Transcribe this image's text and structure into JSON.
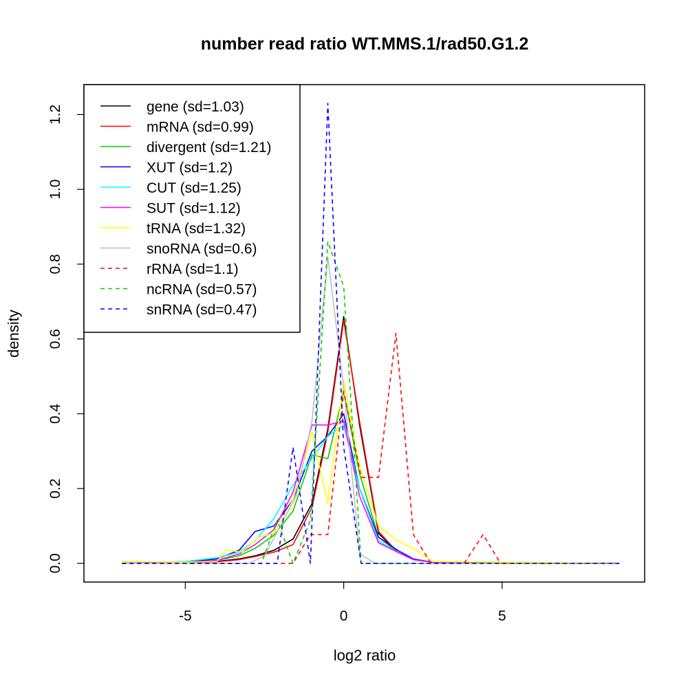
{
  "chart_data": {
    "type": "line",
    "title": "number read ratio WT.MMS.1/rad50.G1.2",
    "xlabel": "log2 ratio",
    "ylabel": "density",
    "xlim": [
      -8.2,
      9.5
    ],
    "ylim": [
      -0.05,
      1.28
    ],
    "xticks": [
      -5,
      0,
      5
    ],
    "yticks": [
      0.0,
      0.2,
      0.4,
      0.6,
      0.8,
      1.0,
      1.2
    ],
    "xtick_labels": [
      "-5",
      "0",
      "5"
    ],
    "ytick_labels": [
      "0.0",
      "0.2",
      "0.4",
      "0.6",
      "0.8",
      "1.0",
      "1.2"
    ],
    "grid": false,
    "legend_position": "top-left",
    "series": [
      {
        "name": "gene (sd=1.03)",
        "color": "#000000",
        "dash": "solid",
        "x": [
          -7.0,
          -5.0,
          -4.0,
          -3.3,
          -2.8,
          -2.2,
          -1.6,
          -1.0,
          -0.5,
          0.0,
          0.5,
          1.1,
          1.7,
          2.2,
          2.8,
          8.7
        ],
        "y": [
          0.0,
          0.002,
          0.005,
          0.012,
          0.02,
          0.035,
          0.065,
          0.16,
          0.36,
          0.66,
          0.37,
          0.08,
          0.03,
          0.01,
          0.003,
          0.0
        ]
      },
      {
        "name": "mRNA (sd=0.99)",
        "color": "#ff0000",
        "dash": "solid",
        "x": [
          -7.0,
          -5.0,
          -4.0,
          -3.3,
          -2.8,
          -2.2,
          -1.6,
          -1.0,
          -0.5,
          0.0,
          0.5,
          1.1,
          1.7,
          2.2,
          2.8,
          8.7
        ],
        "y": [
          0.0,
          0.002,
          0.004,
          0.01,
          0.018,
          0.03,
          0.05,
          0.15,
          0.35,
          0.65,
          0.38,
          0.085,
          0.03,
          0.01,
          0.003,
          0.0
        ]
      },
      {
        "name": "divergent (sd=1.21)",
        "color": "#00cd00",
        "dash": "solid",
        "x": [
          -7.0,
          -5.0,
          -4.0,
          -3.3,
          -2.8,
          -2.2,
          -1.6,
          -1.0,
          -0.5,
          0.0,
          0.5,
          1.1,
          1.7,
          2.2,
          2.8,
          8.7
        ],
        "y": [
          0.0,
          0.003,
          0.008,
          0.02,
          0.04,
          0.075,
          0.14,
          0.29,
          0.28,
          0.46,
          0.24,
          0.07,
          0.03,
          0.01,
          0.003,
          0.0
        ]
      },
      {
        "name": "XUT (sd=1.2)",
        "color": "#0000ff",
        "dash": "solid",
        "x": [
          -7.0,
          -5.0,
          -4.0,
          -3.3,
          -2.8,
          -2.2,
          -1.6,
          -1.0,
          -0.5,
          0.0,
          0.5,
          1.1,
          1.7,
          2.2,
          2.8,
          8.7
        ],
        "y": [
          0.0,
          0.003,
          0.012,
          0.035,
          0.085,
          0.1,
          0.17,
          0.3,
          0.34,
          0.4,
          0.2,
          0.07,
          0.035,
          0.012,
          0.003,
          0.0
        ]
      },
      {
        "name": "CUT (sd=1.25)",
        "color": "#00ffff",
        "dash": "solid",
        "x": [
          -7.0,
          -5.0,
          -4.0,
          -3.3,
          -2.8,
          -2.2,
          -1.6,
          -1.0,
          -0.5,
          0.0,
          0.5,
          1.1,
          1.7,
          2.2,
          2.8,
          8.7
        ],
        "y": [
          0.0,
          0.005,
          0.015,
          0.03,
          0.06,
          0.12,
          0.21,
          0.28,
          0.34,
          0.37,
          0.2,
          0.06,
          0.03,
          0.01,
          0.003,
          0.0
        ]
      },
      {
        "name": "SUT (sd=1.12)",
        "color": "#ff00ff",
        "dash": "solid",
        "x": [
          -7.0,
          -5.0,
          -4.0,
          -3.3,
          -2.8,
          -2.2,
          -1.6,
          -1.0,
          -0.5,
          0.0,
          0.5,
          1.1,
          1.7,
          2.2,
          2.8,
          8.7
        ],
        "y": [
          0.0,
          0.003,
          0.008,
          0.025,
          0.05,
          0.09,
          0.19,
          0.37,
          0.37,
          0.38,
          0.18,
          0.055,
          0.03,
          0.01,
          0.003,
          0.0
        ]
      },
      {
        "name": "tRNA (sd=1.32)",
        "color": "#ffff00",
        "dash": "solid",
        "x": [
          -7.0,
          -5.0,
          -4.0,
          -3.7,
          -3.2,
          -2.7,
          -2.2,
          -1.6,
          -1.0,
          -0.5,
          0.0,
          0.5,
          1.1,
          1.7,
          2.2,
          2.8,
          8.7
        ],
        "y": [
          0.005,
          0.003,
          0.005,
          0.035,
          0.03,
          0.07,
          0.08,
          0.17,
          0.35,
          0.16,
          0.49,
          0.26,
          0.1,
          0.06,
          0.04,
          0.005,
          0.0
        ]
      },
      {
        "name": "snoRNA (sd=0.6)",
        "color": "#bebebe",
        "dash": "solid",
        "x": [
          -7.0,
          -3.0,
          -2.5,
          -2.0,
          -1.5,
          -1.0,
          -0.5,
          0.0,
          0.5,
          1.0,
          8.7
        ],
        "y": [
          0.0,
          0.0,
          0.02,
          0.1,
          0.18,
          0.38,
          0.82,
          0.47,
          0.025,
          0.0,
          0.0
        ]
      },
      {
        "name": "rRNA (sd=1.1)",
        "color": "#ff0000",
        "dash": "dashed",
        "x": [
          -7.0,
          -2.1,
          -1.6,
          -1.05,
          -0.5,
          0.0,
          0.55,
          1.1,
          1.65,
          2.2,
          2.75,
          3.8,
          4.4,
          4.95,
          8.7
        ],
        "y": [
          0.0,
          0.0,
          0.0,
          0.077,
          0.077,
          0.46,
          0.23,
          0.23,
          0.615,
          0.077,
          0.0,
          0.0,
          0.077,
          0.0,
          0.0
        ]
      },
      {
        "name": "ncRNA (sd=0.57)",
        "color": "#00cd00",
        "dash": "dashed",
        "x": [
          -7.0,
          -2.6,
          -2.1,
          -1.6,
          -1.05,
          -0.5,
          0.0,
          0.55,
          1.1,
          8.7
        ],
        "y": [
          0.0,
          0.0,
          0.115,
          0.0,
          0.115,
          0.86,
          0.74,
          0.0,
          0.0,
          0.0
        ]
      },
      {
        "name": "snRNA (sd=0.47)",
        "color": "#0000ff",
        "dash": "dashed",
        "x": [
          -7.0,
          -2.1,
          -1.6,
          -1.05,
          -0.5,
          0.0,
          0.55,
          8.7
        ],
        "y": [
          0.0,
          0.0,
          0.31,
          0.0,
          1.23,
          0.31,
          0.0,
          0.0
        ]
      }
    ]
  }
}
